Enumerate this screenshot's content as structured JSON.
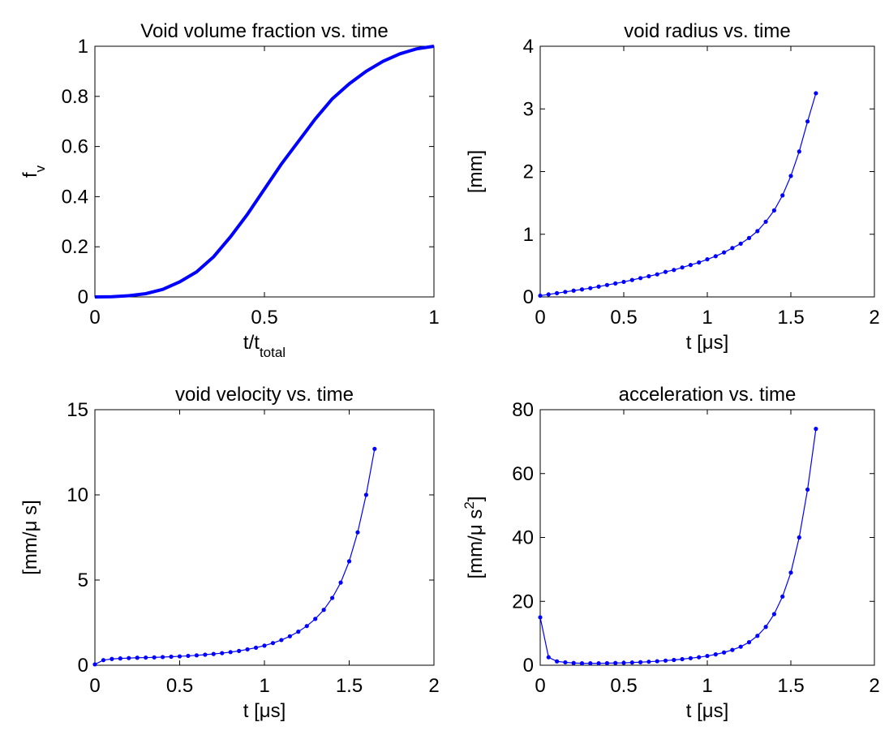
{
  "chart_data": [
    {
      "type": "line",
      "title": "Void volume fraction vs. time",
      "xlabel": [
        {
          "text": "t/t"
        },
        {
          "text": "total",
          "script": "sub"
        }
      ],
      "ylabel": [
        {
          "text": "f"
        },
        {
          "text": "v",
          "script": "sub"
        }
      ],
      "x": [
        0,
        0.05,
        0.1,
        0.15,
        0.2,
        0.25,
        0.3,
        0.35,
        0.4,
        0.45,
        0.5,
        0.55,
        0.6,
        0.65,
        0.7,
        0.75,
        0.8,
        0.85,
        0.9,
        0.95,
        1
      ],
      "series": [
        {
          "color": "#0000ff",
          "markers": false,
          "values": [
            0,
            0.001,
            0.005,
            0.013,
            0.03,
            0.06,
            0.1,
            0.16,
            0.24,
            0.33,
            0.43,
            0.53,
            0.62,
            0.71,
            0.79,
            0.85,
            0.9,
            0.94,
            0.97,
            0.99,
            1
          ]
        }
      ],
      "xlim": [
        0,
        1
      ],
      "xticks": [
        0,
        0.5,
        1
      ],
      "ylim": [
        0,
        1
      ],
      "yticks": [
        0,
        0.2,
        0.4,
        0.6,
        0.8,
        1
      ]
    },
    {
      "type": "line",
      "title": "void radius vs. time",
      "xlabel": [
        {
          "text": "t [μs]"
        }
      ],
      "ylabel": [
        {
          "text": "[mm]"
        }
      ],
      "x": [
        0,
        0.05,
        0.1,
        0.15,
        0.2,
        0.25,
        0.3,
        0.35,
        0.4,
        0.45,
        0.5,
        0.55,
        0.6,
        0.65,
        0.7,
        0.75,
        0.8,
        0.85,
        0.9,
        0.95,
        1,
        1.05,
        1.1,
        1.15,
        1.2,
        1.25,
        1.3,
        1.35,
        1.4,
        1.45,
        1.5,
        1.55,
        1.6,
        1.65
      ],
      "series": [
        {
          "color": "#0000ff",
          "markers": true,
          "values": [
            0.02,
            0.04,
            0.06,
            0.08,
            0.1,
            0.12,
            0.14,
            0.165,
            0.19,
            0.215,
            0.24,
            0.27,
            0.3,
            0.33,
            0.36,
            0.4,
            0.43,
            0.47,
            0.51,
            0.55,
            0.6,
            0.65,
            0.71,
            0.78,
            0.85,
            0.94,
            1.05,
            1.2,
            1.38,
            1.62,
            1.93,
            2.32,
            2.8,
            3.25
          ]
        }
      ],
      "xlim": [
        0,
        2
      ],
      "xticks": [
        0,
        0.5,
        1,
        1.5,
        2
      ],
      "ylim": [
        0,
        4
      ],
      "yticks": [
        0,
        1,
        2,
        3,
        4
      ]
    },
    {
      "type": "line",
      "title": "void velocity vs. time",
      "xlabel": [
        {
          "text": "t [μs]"
        }
      ],
      "ylabel": [
        {
          "text": "[mm/μ s]"
        }
      ],
      "x": [
        0,
        0.05,
        0.1,
        0.15,
        0.2,
        0.25,
        0.3,
        0.35,
        0.4,
        0.45,
        0.5,
        0.55,
        0.6,
        0.65,
        0.7,
        0.75,
        0.8,
        0.85,
        0.9,
        0.95,
        1,
        1.05,
        1.1,
        1.15,
        1.2,
        1.25,
        1.3,
        1.35,
        1.4,
        1.45,
        1.5,
        1.55,
        1.6,
        1.65
      ],
      "series": [
        {
          "color": "#0000ff",
          "markers": true,
          "values": [
            0.05,
            0.3,
            0.37,
            0.4,
            0.42,
            0.44,
            0.45,
            0.46,
            0.48,
            0.5,
            0.52,
            0.55,
            0.58,
            0.62,
            0.66,
            0.71,
            0.77,
            0.84,
            0.93,
            1.03,
            1.15,
            1.3,
            1.48,
            1.7,
            1.97,
            2.3,
            2.72,
            3.25,
            3.95,
            4.85,
            6.1,
            7.8,
            10,
            12.7
          ]
        }
      ],
      "xlim": [
        0,
        2
      ],
      "xticks": [
        0,
        0.5,
        1,
        1.5,
        2
      ],
      "ylim": [
        0,
        15
      ],
      "yticks": [
        0,
        5,
        10,
        15
      ]
    },
    {
      "type": "line",
      "title": "acceleration vs. time",
      "xlabel": [
        {
          "text": "t [μs]"
        }
      ],
      "ylabel": [
        {
          "text": "[mm/μ s"
        },
        {
          "text": "2",
          "script": "sup"
        },
        {
          "text": "]"
        }
      ],
      "x": [
        0,
        0.05,
        0.1,
        0.15,
        0.2,
        0.25,
        0.3,
        0.35,
        0.4,
        0.45,
        0.5,
        0.55,
        0.6,
        0.65,
        0.7,
        0.75,
        0.8,
        0.85,
        0.9,
        0.95,
        1,
        1.05,
        1.1,
        1.15,
        1.2,
        1.25,
        1.3,
        1.35,
        1.4,
        1.45,
        1.5,
        1.55,
        1.6,
        1.65
      ],
      "series": [
        {
          "color": "#0000ff",
          "markers": true,
          "values": [
            15,
            2.5,
            1.2,
            0.9,
            0.7,
            0.6,
            0.6,
            0.6,
            0.65,
            0.7,
            0.75,
            0.85,
            0.95,
            1.1,
            1.25,
            1.45,
            1.65,
            1.9,
            2.2,
            2.5,
            2.9,
            3.4,
            4,
            4.8,
            5.8,
            7.2,
            9.2,
            12,
            16,
            21.5,
            29,
            40,
            55,
            74
          ]
        }
      ],
      "xlim": [
        0,
        2
      ],
      "xticks": [
        0,
        0.5,
        1,
        1.5,
        2
      ],
      "ylim": [
        0,
        80
      ],
      "yticks": [
        0,
        20,
        40,
        60,
        80
      ]
    }
  ]
}
